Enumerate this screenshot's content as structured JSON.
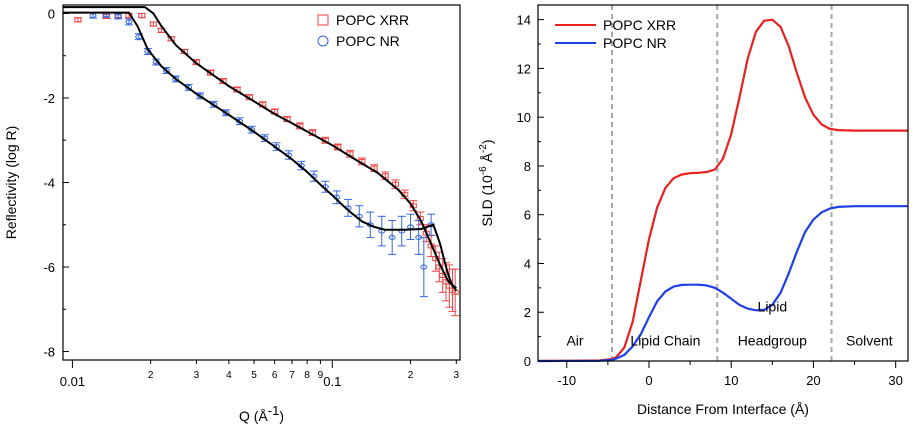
{
  "chart_data": [
    {
      "type": "scatter",
      "xscale": "log",
      "xlabel": "Q (Å",
      "xlabel_sup": "-1",
      "xlabel_close": ")",
      "ylabel": "Reflectivity (log R)",
      "xlim": [
        0.0092,
        0.31
      ],
      "ylim": [
        -8.2,
        0.2
      ],
      "x_major_ticks": [
        {
          "value": 0.01,
          "label": "0.01"
        },
        {
          "value": 0.1,
          "label": "0.1"
        }
      ],
      "x_minor_ticks": [
        {
          "value": 0.02,
          "label": "2"
        },
        {
          "value": 0.03,
          "label": "3"
        },
        {
          "value": 0.04,
          "label": "4"
        },
        {
          "value": 0.05,
          "label": "5"
        },
        {
          "value": 0.06,
          "label": "6"
        },
        {
          "value": 0.07,
          "label": "7"
        },
        {
          "value": 0.08,
          "label": "8"
        },
        {
          "value": 0.09,
          "label": "9"
        },
        {
          "value": 0.2,
          "label": "2"
        },
        {
          "value": 0.3,
          "label": "3"
        }
      ],
      "y_ticks": [
        {
          "value": 0,
          "label": "0"
        },
        {
          "value": -2,
          "label": "-2"
        },
        {
          "value": -4,
          "label": "-4"
        },
        {
          "value": -6,
          "label": "-6"
        },
        {
          "value": -8,
          "label": "-8"
        }
      ],
      "legend_position": "top-right",
      "series": [
        {
          "name": "POPC XRR",
          "marker": "square",
          "color": "#ee4444",
          "points": [
            {
              "x": 0.0105,
              "y": -0.15,
              "e": 0.05
            },
            {
              "x": 0.0135,
              "y": -0.07,
              "e": 0.05
            },
            {
              "x": 0.015,
              "y": -0.05,
              "e": 0.05
            },
            {
              "x": 0.0165,
              "y": -0.05,
              "e": 0.05
            },
            {
              "x": 0.0185,
              "y": -0.05,
              "e": 0.05
            },
            {
              "x": 0.0205,
              "y": -0.25,
              "e": 0.05
            },
            {
              "x": 0.022,
              "y": -0.4,
              "e": 0.05
            },
            {
              "x": 0.024,
              "y": -0.6,
              "e": 0.05
            },
            {
              "x": 0.027,
              "y": -0.9,
              "e": 0.05
            },
            {
              "x": 0.03,
              "y": -1.15,
              "e": 0.06
            },
            {
              "x": 0.034,
              "y": -1.4,
              "e": 0.06
            },
            {
              "x": 0.038,
              "y": -1.6,
              "e": 0.06
            },
            {
              "x": 0.043,
              "y": -1.8,
              "e": 0.06
            },
            {
              "x": 0.048,
              "y": -1.98,
              "e": 0.06
            },
            {
              "x": 0.054,
              "y": -2.15,
              "e": 0.06
            },
            {
              "x": 0.06,
              "y": -2.32,
              "e": 0.06
            },
            {
              "x": 0.067,
              "y": -2.5,
              "e": 0.06
            },
            {
              "x": 0.075,
              "y": -2.66,
              "e": 0.07
            },
            {
              "x": 0.084,
              "y": -2.82,
              "e": 0.07
            },
            {
              "x": 0.094,
              "y": -3.0,
              "e": 0.07
            },
            {
              "x": 0.105,
              "y": -3.16,
              "e": 0.07
            },
            {
              "x": 0.117,
              "y": -3.32,
              "e": 0.08
            },
            {
              "x": 0.13,
              "y": -3.5,
              "e": 0.08
            },
            {
              "x": 0.145,
              "y": -3.66,
              "e": 0.08
            },
            {
              "x": 0.16,
              "y": -3.84,
              "e": 0.09
            },
            {
              "x": 0.175,
              "y": -4.04,
              "e": 0.1
            },
            {
              "x": 0.19,
              "y": -4.28,
              "e": 0.1
            },
            {
              "x": 0.205,
              "y": -4.55,
              "e": 0.12
            },
            {
              "x": 0.218,
              "y": -4.85,
              "e": 0.15
            },
            {
              "x": 0.23,
              "y": -5.2,
              "e": 0.2
            },
            {
              "x": 0.24,
              "y": -5.5,
              "e": 0.25
            },
            {
              "x": 0.25,
              "y": -5.8,
              "e": 0.3
            },
            {
              "x": 0.258,
              "y": -6.0,
              "e": 0.35
            },
            {
              "x": 0.266,
              "y": -6.2,
              "e": 0.4
            },
            {
              "x": 0.274,
              "y": -6.35,
              "e": 0.45
            },
            {
              "x": 0.282,
              "y": -6.45,
              "e": 0.5
            },
            {
              "x": 0.29,
              "y": -6.55,
              "e": 0.5
            },
            {
              "x": 0.297,
              "y": -6.6,
              "e": 0.55
            }
          ]
        },
        {
          "name": "POPC NR",
          "marker": "circle",
          "color": "#3366dd",
          "points": [
            {
              "x": 0.012,
              "y": -0.05,
              "e": 0.06
            },
            {
              "x": 0.0135,
              "y": -0.03,
              "e": 0.06
            },
            {
              "x": 0.015,
              "y": -0.07,
              "e": 0.06
            },
            {
              "x": 0.0165,
              "y": -0.2,
              "e": 0.07
            },
            {
              "x": 0.018,
              "y": -0.55,
              "e": 0.07
            },
            {
              "x": 0.0195,
              "y": -0.9,
              "e": 0.07
            },
            {
              "x": 0.021,
              "y": -1.15,
              "e": 0.07
            },
            {
              "x": 0.023,
              "y": -1.35,
              "e": 0.07
            },
            {
              "x": 0.025,
              "y": -1.55,
              "e": 0.07
            },
            {
              "x": 0.028,
              "y": -1.75,
              "e": 0.07
            },
            {
              "x": 0.031,
              "y": -1.95,
              "e": 0.07
            },
            {
              "x": 0.035,
              "y": -2.15,
              "e": 0.07
            },
            {
              "x": 0.039,
              "y": -2.35,
              "e": 0.07
            },
            {
              "x": 0.044,
              "y": -2.55,
              "e": 0.08
            },
            {
              "x": 0.049,
              "y": -2.75,
              "e": 0.08
            },
            {
              "x": 0.055,
              "y": -2.95,
              "e": 0.08
            },
            {
              "x": 0.061,
              "y": -3.15,
              "e": 0.09
            },
            {
              "x": 0.068,
              "y": -3.35,
              "e": 0.1
            },
            {
              "x": 0.076,
              "y": -3.6,
              "e": 0.1
            },
            {
              "x": 0.085,
              "y": -3.85,
              "e": 0.12
            },
            {
              "x": 0.094,
              "y": -4.1,
              "e": 0.13
            },
            {
              "x": 0.104,
              "y": -4.35,
              "e": 0.15
            },
            {
              "x": 0.115,
              "y": -4.6,
              "e": 0.2
            },
            {
              "x": 0.127,
              "y": -4.8,
              "e": 0.25
            },
            {
              "x": 0.14,
              "y": -5.0,
              "e": 0.3
            },
            {
              "x": 0.155,
              "y": -5.15,
              "e": 0.35
            },
            {
              "x": 0.17,
              "y": -5.3,
              "e": 0.4
            },
            {
              "x": 0.185,
              "y": -5.15,
              "e": 0.35
            },
            {
              "x": 0.2,
              "y": -5.05,
              "e": 0.3
            },
            {
              "x": 0.215,
              "y": -5.3,
              "e": 0.4
            },
            {
              "x": 0.225,
              "y": -6.0,
              "e": 0.7
            },
            {
              "x": 0.24,
              "y": -5.0,
              "e": 0.25
            }
          ]
        }
      ],
      "fits": [
        {
          "name": "XRR fit",
          "color": "#000000",
          "points": [
            [
              0.0092,
              0.15
            ],
            [
              0.019,
              0.15
            ],
            [
              0.0205,
              0.0
            ],
            [
              0.022,
              -0.3
            ],
            [
              0.025,
              -0.75
            ],
            [
              0.03,
              -1.18
            ],
            [
              0.04,
              -1.72
            ],
            [
              0.05,
              -2.08
            ],
            [
              0.06,
              -2.38
            ],
            [
              0.07,
              -2.6
            ],
            [
              0.085,
              -2.88
            ],
            [
              0.1,
              -3.12
            ],
            [
              0.12,
              -3.42
            ],
            [
              0.15,
              -3.78
            ],
            [
              0.18,
              -4.18
            ],
            [
              0.2,
              -4.5
            ],
            [
              0.22,
              -4.92
            ],
            [
              0.24,
              -5.45
            ],
            [
              0.26,
              -5.95
            ],
            [
              0.28,
              -6.35
            ],
            [
              0.3,
              -6.5
            ]
          ]
        },
        {
          "name": "NR fit",
          "color": "#000000",
          "points": [
            [
              0.0092,
              0.02
            ],
            [
              0.0165,
              0.02
            ],
            [
              0.0178,
              -0.3
            ],
            [
              0.0195,
              -0.85
            ],
            [
              0.022,
              -1.25
            ],
            [
              0.025,
              -1.55
            ],
            [
              0.03,
              -1.9
            ],
            [
              0.04,
              -2.4
            ],
            [
              0.05,
              -2.8
            ],
            [
              0.06,
              -3.15
            ],
            [
              0.07,
              -3.45
            ],
            [
              0.08,
              -3.75
            ],
            [
              0.09,
              -4.05
            ],
            [
              0.1,
              -4.3
            ],
            [
              0.11,
              -4.55
            ],
            [
              0.12,
              -4.75
            ],
            [
              0.13,
              -4.92
            ],
            [
              0.145,
              -5.05
            ],
            [
              0.16,
              -5.12
            ],
            [
              0.19,
              -5.12
            ],
            [
              0.22,
              -5.1
            ],
            [
              0.245,
              -5.0
            ],
            [
              0.26,
              -5.45
            ],
            [
              0.27,
              -5.85
            ],
            [
              0.28,
              -6.2
            ],
            [
              0.29,
              -6.45
            ],
            [
              0.3,
              -6.55
            ]
          ]
        }
      ]
    },
    {
      "type": "line",
      "xlabel": "Distance From Interface (Å)",
      "ylabel_pre": "SLD (10",
      "ylabel_sup1": "-6",
      "ylabel_mid": " Å",
      "ylabel_sup2": "-2",
      "ylabel_close": ")",
      "xlim": [
        -13.5,
        31.5
      ],
      "ylim": [
        0,
        14.6
      ],
      "x_ticks": [
        {
          "value": -10,
          "label": "-10"
        },
        {
          "value": 0,
          "label": "0"
        },
        {
          "value": 10,
          "label": "10"
        },
        {
          "value": 20,
          "label": "20"
        },
        {
          "value": 30,
          "label": "30"
        }
      ],
      "y_ticks": [
        {
          "value": 0,
          "label": "0"
        },
        {
          "value": 2,
          "label": "2"
        },
        {
          "value": 4,
          "label": "4"
        },
        {
          "value": 6,
          "label": "6"
        },
        {
          "value": 8,
          "label": "8"
        },
        {
          "value": 10,
          "label": "10"
        },
        {
          "value": 12,
          "label": "12"
        },
        {
          "value": 14,
          "label": "14"
        }
      ],
      "legend_position": "top-left",
      "dividers": [
        -4.5,
        8.3,
        22.2
      ],
      "regions": [
        {
          "label": "Air",
          "x": -9,
          "y": 0.8
        },
        {
          "label": "Lipid Chain",
          "x": 2,
          "y": 0.8
        },
        {
          "label": "Lipid",
          "x": 15,
          "y": 2.2
        },
        {
          "label": "Headgroup",
          "x": 15,
          "y": 0.8
        },
        {
          "label": "Solvent",
          "x": 26.8,
          "y": 0.8
        }
      ],
      "series": [
        {
          "name": "POPC XRR",
          "color": "#e8201e",
          "points": [
            [
              -13.5,
              0.0
            ],
            [
              -6,
              0.02
            ],
            [
              -4.5,
              0.08
            ],
            [
              -4,
              0.15
            ],
            [
              -3,
              0.55
            ],
            [
              -2,
              1.6
            ],
            [
              -1,
              3.3
            ],
            [
              0,
              5.0
            ],
            [
              1,
              6.3
            ],
            [
              2,
              7.1
            ],
            [
              3,
              7.5
            ],
            [
              4,
              7.65
            ],
            [
              5,
              7.7
            ],
            [
              6,
              7.72
            ],
            [
              7,
              7.75
            ],
            [
              8,
              7.85
            ],
            [
              9,
              8.3
            ],
            [
              10,
              9.3
            ],
            [
              11,
              10.8
            ],
            [
              12,
              12.4
            ],
            [
              13,
              13.5
            ],
            [
              14,
              13.95
            ],
            [
              15,
              14.0
            ],
            [
              16,
              13.7
            ],
            [
              17,
              12.9
            ],
            [
              18,
              11.8
            ],
            [
              19,
              10.8
            ],
            [
              20,
              10.1
            ],
            [
              21,
              9.7
            ],
            [
              22,
              9.52
            ],
            [
              23,
              9.47
            ],
            [
              25,
              9.45
            ],
            [
              31.5,
              9.45
            ]
          ]
        },
        {
          "name": "POPC NR",
          "color": "#1f3fe6",
          "points": [
            [
              -13.5,
              0.0
            ],
            [
              -6,
              0.01
            ],
            [
              -4.5,
              0.05
            ],
            [
              -4,
              0.1
            ],
            [
              -3,
              0.25
            ],
            [
              -2,
              0.6
            ],
            [
              -1,
              1.1
            ],
            [
              0,
              1.8
            ],
            [
              1,
              2.45
            ],
            [
              2,
              2.85
            ],
            [
              3,
              3.05
            ],
            [
              4,
              3.12
            ],
            [
              5,
              3.13
            ],
            [
              6,
              3.13
            ],
            [
              7,
              3.1
            ],
            [
              8,
              3.0
            ],
            [
              9,
              2.8
            ],
            [
              10,
              2.55
            ],
            [
              11,
              2.3
            ],
            [
              12,
              2.15
            ],
            [
              13,
              2.08
            ],
            [
              14,
              2.1
            ],
            [
              15,
              2.3
            ],
            [
              16,
              2.8
            ],
            [
              17,
              3.6
            ],
            [
              18,
              4.5
            ],
            [
              19,
              5.3
            ],
            [
              20,
              5.8
            ],
            [
              21,
              6.1
            ],
            [
              22,
              6.25
            ],
            [
              23,
              6.32
            ],
            [
              25,
              6.35
            ],
            [
              31.5,
              6.35
            ]
          ]
        }
      ]
    }
  ]
}
